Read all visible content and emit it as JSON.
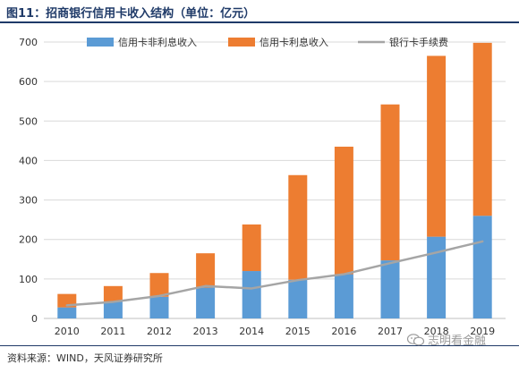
{
  "figure": {
    "title": "图11：招商银行信用卡收入结构（单位：亿元）",
    "source": "资料来源：WIND，天风证券研究所",
    "watermark": "志明看金融",
    "watermark_icon": "wechat-icon"
  },
  "chart_data": {
    "type": "bar",
    "stacked": true,
    "categories": [
      "2010",
      "2011",
      "2012",
      "2013",
      "2014",
      "2015",
      "2016",
      "2017",
      "2018",
      "2019"
    ],
    "series": [
      {
        "name": "信用卡非利息收入",
        "type": "bar",
        "color": "#5b9bd5",
        "values": [
          28,
          42,
          55,
          78,
          120,
          98,
          112,
          147,
          207,
          260
        ]
      },
      {
        "name": "信用卡利息收入",
        "type": "bar",
        "color": "#ed7d31",
        "values": [
          34,
          40,
          60,
          87,
          118,
          265,
          323,
          395,
          458,
          438
        ]
      },
      {
        "name": "银行卡手续费",
        "type": "line",
        "color": "#a5a5a5",
        "values": [
          33,
          42,
          57,
          82,
          76,
          97,
          112,
          140,
          167,
          195
        ]
      }
    ],
    "ylim": [
      0,
      700
    ],
    "yticks": [
      0,
      100,
      200,
      300,
      400,
      500,
      600,
      700
    ],
    "grid": true,
    "legend": "top"
  }
}
